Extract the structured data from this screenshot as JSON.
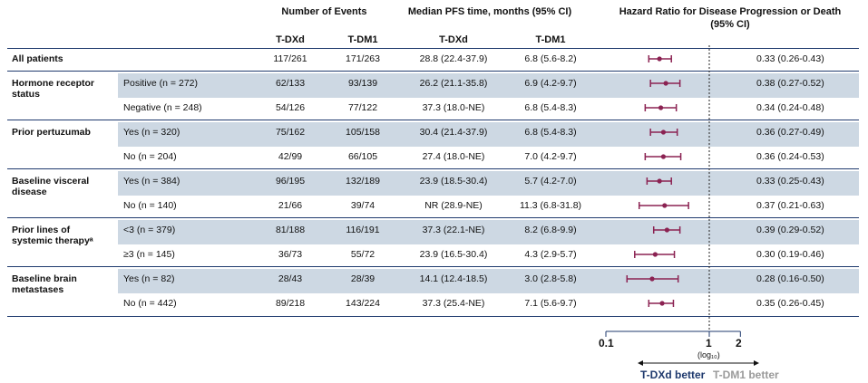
{
  "header": {
    "events": "Number of Events",
    "pfs": "Median PFS time, months (95% CI)",
    "hr": "Hazard Ratio for Disease Progression or Death",
    "hr_ci": "(95% CI)",
    "arm1": "T-DXd",
    "arm2": "T-DM1",
    "arm1b": "T-DXd",
    "arm2b": "T-DM1"
  },
  "rows": [
    {
      "group": "All patients",
      "sub": "",
      "e1": "117/261",
      "e2": "171/263",
      "p1": "28.8 (22.4-37.9)",
      "p2": "6.8 (5.6-8.2)",
      "hrtxt": "0.33 (0.26-0.43)"
    },
    {
      "group": "Hormone receptor status",
      "sub": "Positive (n = 272)",
      "e1": "62/133",
      "e2": "93/139",
      "p1": "26.2 (21.1-35.8)",
      "p2": "6.9 (4.2-9.7)",
      "hrtxt": "0.38 (0.27-0.52)"
    },
    {
      "group": "",
      "sub": "Negative (n = 248)",
      "e1": "54/126",
      "e2": "77/122",
      "p1": "37.3 (18.0-NE)",
      "p2": "6.8 (5.4-8.3)",
      "hrtxt": "0.34 (0.24-0.48)"
    },
    {
      "group": "Prior pertuzumab",
      "sub": "Yes (n = 320)",
      "e1": "75/162",
      "e2": "105/158",
      "p1": "30.4 (21.4-37.9)",
      "p2": "6.8 (5.4-8.3)",
      "hrtxt": "0.36 (0.27-0.49)"
    },
    {
      "group": "",
      "sub": "No (n = 204)",
      "e1": "42/99",
      "e2": "66/105",
      "p1": "27.4 (18.0-NE)",
      "p2": "7.0 (4.2-9.7)",
      "hrtxt": "0.36 (0.24-0.53)"
    },
    {
      "group": "Baseline visceral disease",
      "sub": "Yes (n = 384)",
      "e1": "96/195",
      "e2": "132/189",
      "p1": "23.9 (18.5-30.4)",
      "p2": "5.7 (4.2-7.0)",
      "hrtxt": "0.33 (0.25-0.43)"
    },
    {
      "group": "",
      "sub": "No (n = 140)",
      "e1": "21/66",
      "e2": "39/74",
      "p1": "NR (28.9-NE)",
      "p2": "11.3 (6.8-31.8)",
      "hrtxt": "0.37 (0.21-0.63)"
    },
    {
      "group": "Prior lines of systemic therapyᵃ",
      "sub": "<3 (n = 379)",
      "e1": "81/188",
      "e2": "116/191",
      "p1": "37.3 (22.1-NE)",
      "p2": "8.2 (6.8-9.9)",
      "hrtxt": "0.39 (0.29-0.52)"
    },
    {
      "group": "",
      "sub": "≥3 (n = 145)",
      "e1": "36/73",
      "e2": "55/72",
      "p1": "23.9 (16.5-30.4)",
      "p2": "4.3 (2.9-5.7)",
      "hrtxt": "0.30 (0.19-0.46)"
    },
    {
      "group": "Baseline brain metastases",
      "sub": "Yes (n = 82)",
      "e1": "28/43",
      "e2": "28/39",
      "p1": "14.1 (12.4-18.5)",
      "p2": "3.0 (2.8-5.8)",
      "hrtxt": "0.28 (0.16-0.50)"
    },
    {
      "group": "",
      "sub": "No (n = 442)",
      "e1": "89/218",
      "e2": "143/224",
      "p1": "37.3 (25.4-NE)",
      "p2": "7.1 (5.6-9.7)",
      "hrtxt": "0.35 (0.26-0.45)"
    }
  ],
  "axis": {
    "ticks": [
      "0.1",
      "1",
      "2"
    ],
    "log_label": "(log₁₀)",
    "better_left": "T-DXd better",
    "better_right": "T-DM1 better"
  },
  "chart_data": {
    "type": "forest",
    "scale": "log10",
    "xlim": [
      0.1,
      2
    ],
    "reference_line": 1,
    "ticks": [
      0.1,
      1,
      2
    ],
    "series": [
      {
        "values": [
          {
            "hr": 0.33,
            "lo": 0.26,
            "hi": 0.43
          },
          {
            "hr": 0.38,
            "lo": 0.27,
            "hi": 0.52
          },
          {
            "hr": 0.34,
            "lo": 0.24,
            "hi": 0.48
          },
          {
            "hr": 0.36,
            "lo": 0.27,
            "hi": 0.49
          },
          {
            "hr": 0.36,
            "lo": 0.24,
            "hi": 0.53
          },
          {
            "hr": 0.33,
            "lo": 0.25,
            "hi": 0.43
          },
          {
            "hr": 0.37,
            "lo": 0.21,
            "hi": 0.63
          },
          {
            "hr": 0.39,
            "lo": 0.29,
            "hi": 0.52
          },
          {
            "hr": 0.3,
            "lo": 0.19,
            "hi": 0.46
          },
          {
            "hr": 0.28,
            "lo": 0.16,
            "hi": 0.5
          },
          {
            "hr": 0.35,
            "lo": 0.26,
            "hi": 0.45
          }
        ]
      }
    ]
  },
  "colors": {
    "band": "#cdd8e3",
    "line": "#1f3a6e",
    "marker": "#8b2252",
    "left_text": "#1f3a6e",
    "right_text": "#9a9a9a"
  }
}
